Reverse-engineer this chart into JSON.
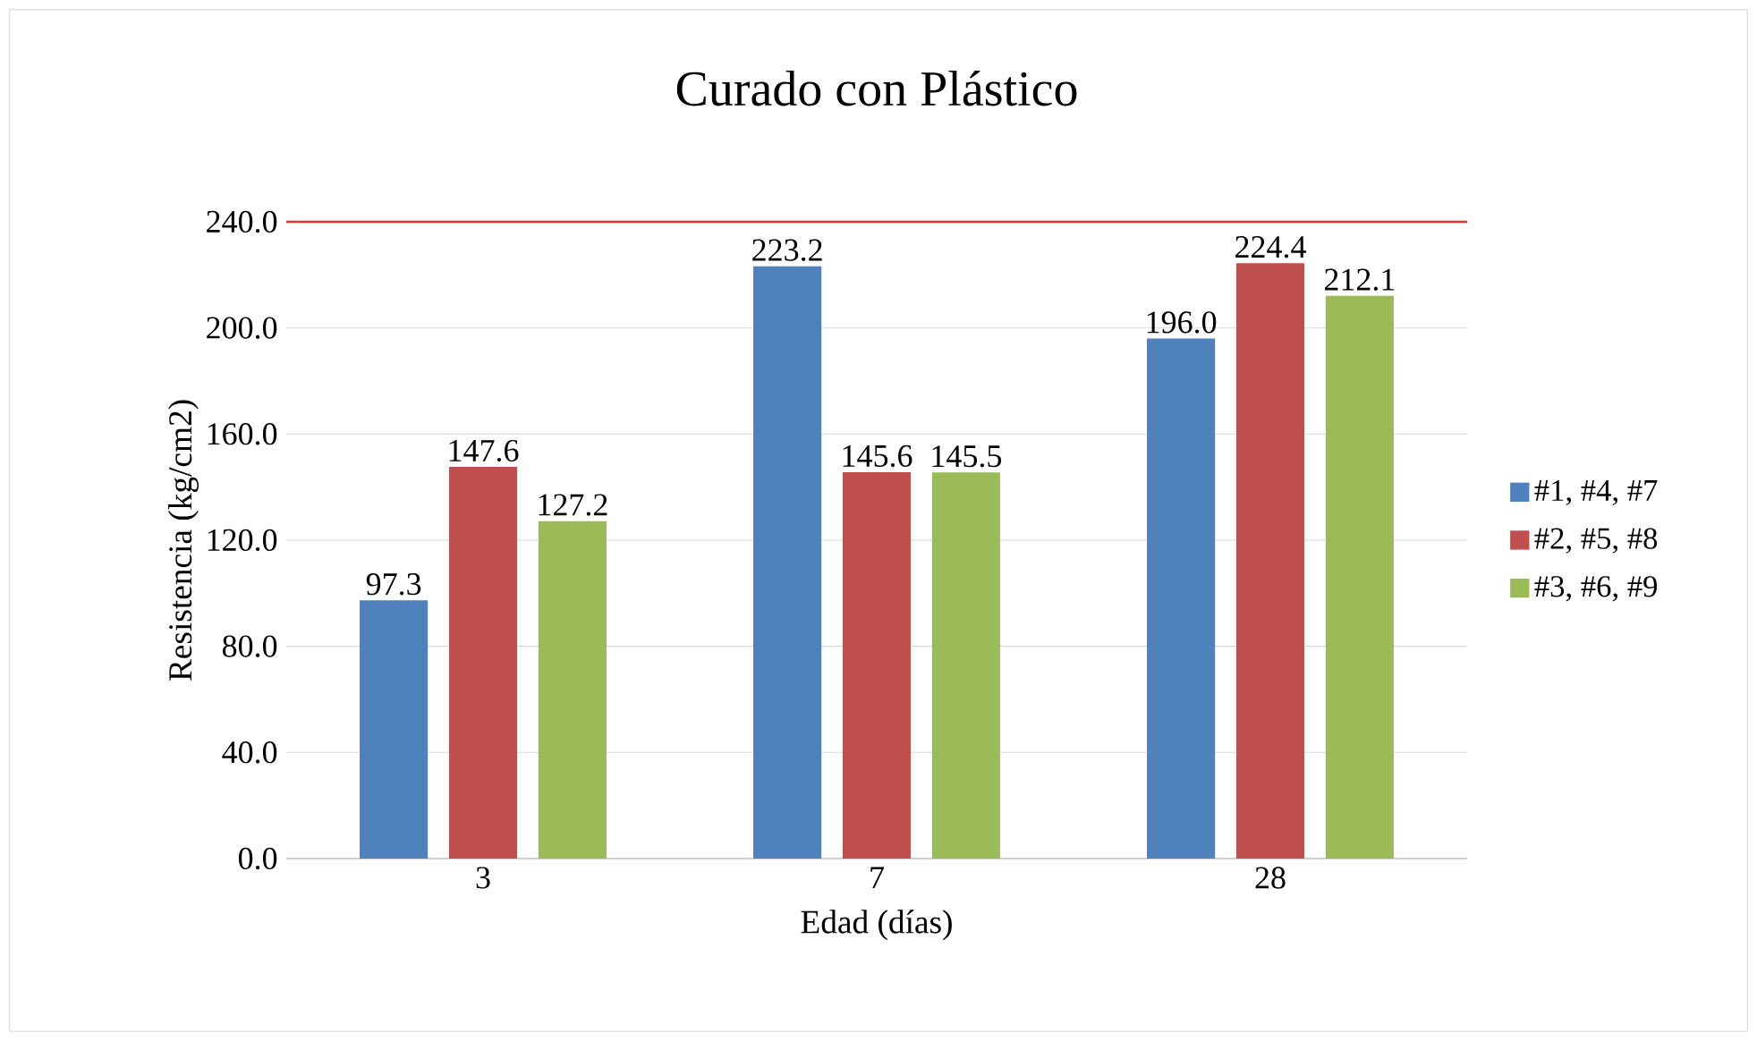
{
  "chart_data": {
    "type": "bar",
    "title": "Curado con Plástico",
    "xlabel": "Edad (días)",
    "ylabel": "Resistencia (kg/cm2)",
    "categories": [
      "3",
      "7",
      "28"
    ],
    "series": [
      {
        "name": "#1, #4, #7",
        "color": "#4f81bd",
        "values": [
          97.3,
          223.2,
          196.0
        ],
        "value_labels": [
          "97.3",
          "223.2",
          "196.0"
        ]
      },
      {
        "name": "#2, #5, #8",
        "color": "#c0504d",
        "values": [
          147.6,
          145.6,
          224.4
        ],
        "value_labels": [
          "147.6",
          "145.6",
          "224.4"
        ]
      },
      {
        "name": "#3, #6, #9",
        "color": "#9bbb59",
        "values": [
          127.2,
          145.5,
          212.1
        ],
        "value_labels": [
          "127.2",
          "145.5",
          "212.1"
        ]
      }
    ],
    "ylim": [
      0,
      240
    ],
    "yticks": [
      {
        "value": 0,
        "label": "0.0"
      },
      {
        "value": 40,
        "label": "40.0"
      },
      {
        "value": 80,
        "label": "80.0"
      },
      {
        "value": 120,
        "label": "120.0"
      },
      {
        "value": 160,
        "label": "160.0"
      },
      {
        "value": 200,
        "label": "200.0"
      },
      {
        "value": 240,
        "label": "240.0"
      }
    ],
    "ref_lines": [
      {
        "axis": "y",
        "value": 240,
        "color": "#e03030"
      }
    ],
    "grid": "y",
    "legend": "right"
  }
}
